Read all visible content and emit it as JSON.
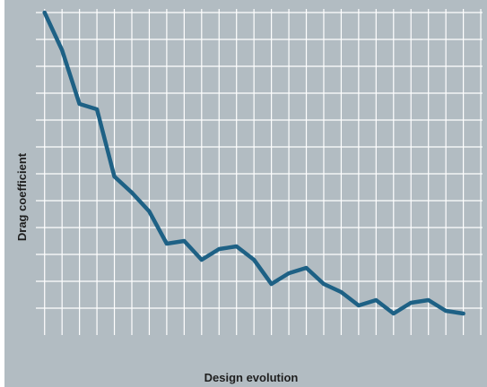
{
  "chart_data": {
    "type": "line",
    "title": "",
    "xlabel": "Design evolution",
    "ylabel": "Drag coefficient",
    "grid": true,
    "legend": "none",
    "x": [
      1,
      2,
      3,
      4,
      5,
      6,
      7,
      8,
      9,
      10,
      11,
      12,
      13,
      14,
      15,
      16,
      17,
      18,
      19,
      20,
      21,
      22,
      23,
      24,
      25
    ],
    "series": [
      {
        "values": [
          18.0,
          16.6,
          14.6,
          14.4,
          11.9,
          11.3,
          10.6,
          9.4,
          9.5,
          8.8,
          9.2,
          9.3,
          8.8,
          7.9,
          8.3,
          8.5,
          7.9,
          7.6,
          7.1,
          7.3,
          6.8,
          7.2,
          7.3,
          6.9,
          6.8
        ]
      }
    ],
    "xlim": [
      0.5,
      26.1
    ],
    "ylim": [
      6.0,
      18.0
    ],
    "colors": {
      "line": "#1e6185",
      "background": "#b2bcc2",
      "grid": "#ffffff"
    }
  }
}
